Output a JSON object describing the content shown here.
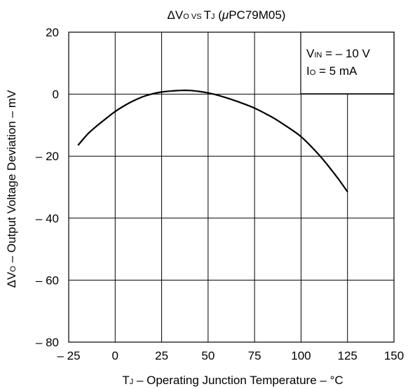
{
  "chart_data": {
    "type": "line",
    "title": {
      "delta": "Δ",
      "v": "V",
      "v_sub": "O",
      "vs": " VS ",
      "t": "T",
      "t_sub": "J",
      "rest_open": " (",
      "mu": "μ",
      "part": "PC79M05)"
    },
    "xlabel": {
      "t": "T",
      "t_sub": "J",
      "text": " – Operating Junction Temperature – °C"
    },
    "ylabel": {
      "delta": "Δ",
      "v": "V",
      "v_sub": "O",
      "text": " – Output Voltage Deviation – mV"
    },
    "xlim": [
      -25,
      150
    ],
    "ylim": [
      -80,
      20
    ],
    "xticks": [
      -25,
      0,
      25,
      50,
      75,
      100,
      125,
      150
    ],
    "yticks": [
      20,
      0,
      -20,
      -40,
      -60,
      -80
    ],
    "xtick_labels": [
      "– 25",
      "0",
      "25",
      "50",
      "75",
      "100",
      "125",
      "150"
    ],
    "ytick_labels": [
      "20",
      "0",
      "– 20",
      "– 40",
      "– 60",
      "– 80"
    ],
    "grid": true,
    "legend_box": {
      "vin": "V",
      "vin_sub": "IN",
      "vin_value": " = – 10 V",
      "io": "I",
      "io_sub": "O",
      "io_value": " = 5 mA"
    },
    "series": [
      {
        "x": [
          -20,
          -15,
          -10,
          -5,
          0,
          5,
          10,
          15,
          20,
          25,
          30,
          35,
          40,
          45,
          50,
          55,
          60,
          65,
          70,
          75,
          80,
          85,
          90,
          95,
          100,
          105,
          110,
          115,
          120,
          125
        ],
        "y": [
          -16.5,
          -13.0,
          -10.3,
          -7.9,
          -5.6,
          -3.7,
          -2.1,
          -0.8,
          0.1,
          0.7,
          1.0,
          1.2,
          1.2,
          0.9,
          0.4,
          -0.3,
          -1.2,
          -2.2,
          -3.3,
          -4.5,
          -6.0,
          -7.6,
          -9.5,
          -11.5,
          -13.7,
          -16.6,
          -19.8,
          -23.4,
          -27.3,
          -31.5
        ]
      }
    ]
  }
}
